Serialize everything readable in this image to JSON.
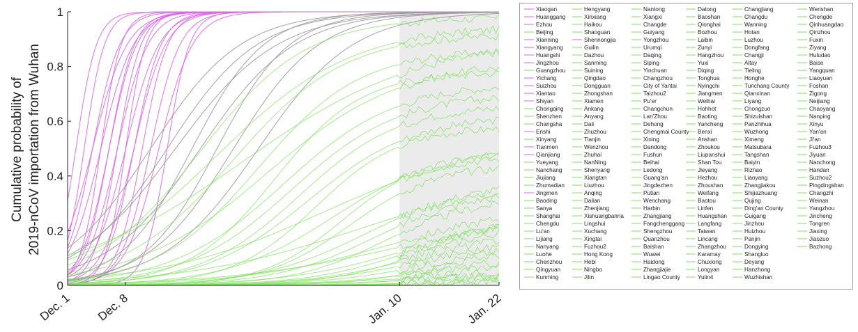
{
  "chart_data": {
    "type": "line",
    "ylabel_line1": "Cumulative probability of",
    "ylabel_line2": "2019-nCoV importation from Wuhan",
    "xlabel": "",
    "ylim": [
      0,
      1
    ],
    "yticks": [
      "0",
      "0.2",
      "0.4",
      "0.6",
      "0.8",
      "1"
    ],
    "ytick_values": [
      0,
      0.2,
      0.4,
      0.6,
      0.8,
      1
    ],
    "xticks": [
      {
        "label": "Dec. 1",
        "date": "2019-12-01"
      },
      {
        "label": "Dec. 8",
        "date": "2019-12-08"
      },
      {
        "label": "Jan. 10",
        "date": "2020-01-10"
      },
      {
        "label": "Jan. 22",
        "date": "2020-01-22"
      }
    ],
    "xrange": [
      "2019-12-01",
      "2020-01-22"
    ],
    "shaded_region": [
      "2020-01-10",
      "2020-01-22"
    ],
    "grid": false,
    "legend_position": "right",
    "colors": {
      "hubei": "#d966e6",
      "transition": "#9a9a9a",
      "other": "#7ee35c",
      "shade": "#ebebeb"
    },
    "series_groups": [
      {
        "group": "hubei",
        "color": "#d966e6",
        "t50_dates": [
          "2019-12-02",
          "2019-12-03",
          "2019-12-04",
          "2019-12-04",
          "2019-12-05",
          "2019-12-05",
          "2019-12-06",
          "2019-12-06",
          "2019-12-07",
          "2019-12-07",
          "2019-12-08",
          "2019-12-08",
          "2019-12-09",
          "2019-12-09",
          "2019-12-10",
          "2019-12-11",
          "2019-12-12",
          "2019-12-13"
        ]
      },
      {
        "group": "transition",
        "color": "#9a9a9a",
        "t50_dates": [
          "2019-12-11",
          "2019-12-13",
          "2019-12-14",
          "2019-12-16",
          "2019-12-17",
          "2019-12-19",
          "2019-12-21",
          "2019-12-24"
        ]
      },
      {
        "group": "other",
        "color": "#7ee35c",
        "t50_dates": [
          "2019-12-17",
          "2019-12-19",
          "2019-12-21",
          "2019-12-22",
          "2019-12-24",
          "2019-12-25",
          "2019-12-26",
          "2019-12-27",
          "2019-12-28",
          "2019-12-29",
          "2019-12-30",
          "2019-12-31",
          "2020-01-01",
          "2020-01-02",
          "2020-01-03",
          "2020-01-04",
          "2020-01-05",
          "2020-01-06",
          "2020-01-07",
          "2020-01-08",
          "2020-01-09",
          "2020-01-10",
          "2020-01-11",
          "2020-01-11",
          "2020-01-12",
          "2020-01-12",
          "2020-01-13",
          "2020-01-14",
          "2020-01-15",
          "2020-01-16",
          "2020-01-17",
          "2020-01-18",
          "2020-01-19",
          "2020-01-20",
          "2020-01-21",
          "2020-01-22"
        ],
        "final_values": [
          0.98,
          0.95,
          0.92,
          0.9,
          0.86,
          0.82,
          0.78,
          0.74,
          0.7,
          0.66,
          0.62,
          0.58,
          0.54,
          0.5,
          0.47,
          0.44,
          0.41,
          0.38,
          0.35,
          0.32,
          0.3,
          0.28,
          0.26,
          0.24,
          0.22,
          0.2,
          0.18,
          0.16,
          0.14,
          0.12,
          0.1,
          0.08,
          0.06,
          0.05,
          0.04,
          0.03
        ]
      }
    ],
    "legend_columns": [
      [
        "Xiaogan",
        "Huanggang",
        "Ezhou",
        "Beijing",
        "Xianning",
        "Xiangyang",
        "Huangshi",
        "Jingzhou",
        "Guangzhou",
        "Yichang",
        "Suizhou",
        "Xiantao",
        "Shiyan",
        "Chongqing",
        "Shenzhen",
        "Changsha",
        "Enshi",
        "Xinyang",
        "Tianmen",
        "Qianjiang",
        "Yueyang",
        "Nanchang",
        "Jiujiang",
        "Zhumadian",
        "Jingmen",
        "Baoding",
        "Sanya",
        "Shanghai",
        "Chengdu",
        "Lu'an",
        "Lijiang",
        "Nanyang",
        "Luohe",
        "Chenzhou",
        "Qingyuan",
        "Kunming"
      ],
      [
        "Hengyang",
        "Xinxiang",
        "Haikou",
        "Shaoguan",
        "Shennongjia",
        "Guilin",
        "Dazhou",
        "Sanming",
        "Suining",
        "Qingdao",
        "Dongguan",
        "Zhongshan",
        "Xiamen",
        "Ankang",
        "Anyang",
        "Dali",
        "Zhuzhou",
        "Tianjin",
        "Wenzhou",
        "Zhuhai",
        "NanNing",
        "Shenyang",
        "Xiangtan",
        "Liuzhou",
        "Anqing",
        "Dalian",
        "Zhenjiang",
        "Xishuangbanna",
        "Lingshui",
        "Xuchang",
        "Xingtai",
        "Fuzhou2",
        "Hong Kong",
        "Hebi",
        "Ningbo",
        "Jilin"
      ],
      [
        "Nantong",
        "Xiangxi",
        "Changde",
        "Guiyang",
        "Yongzhou",
        "Urumqi",
        "Daqing",
        "Siping",
        "Yinchuan",
        "Changzhou",
        "City of Yantai",
        "Taizhou2",
        "Pu'er",
        "Changchun",
        "Lan'Zhou",
        "Dehong",
        "Chengmai County",
        "Xining",
        "Dandong",
        "Fushun",
        "Beihai",
        "Ledong",
        "Guang'an",
        "Jingdezhen",
        "Putian",
        "Wenchang",
        "Harbin",
        "Zhangjiang",
        "Fangchenggang",
        "Shengzhou",
        "Quanzhou",
        "Baishan",
        "Wuwei",
        "Haidong",
        "Zhangjiajie",
        "Lingao County"
      ],
      [
        "Datong",
        "Baoshan",
        "Qionghai",
        "Bozhou",
        "Laibin",
        "Zunyi",
        "Hangzhou",
        "Yuxi",
        "Diqing",
        "Tonghua",
        "Nyingchi",
        "Jiangmen",
        "Weihai",
        "Hohhot",
        "Baoting",
        "Yancheng",
        "Benxi",
        "Anshan",
        "Zhoukou",
        "Liupanshui",
        "Shan Tou",
        "Jieyang",
        "Hezhou",
        "Zhoushan",
        "Weifang",
        "Baotou",
        "Linfen",
        "Huangshan",
        "Langfang",
        "Taiwan",
        "Lincang",
        "Zhangzhou",
        "Karamay",
        "Chuxiong",
        "Longyan",
        "Yulin4"
      ],
      [
        "Changjiang",
        "Changdu",
        "Wanning",
        "Hotan",
        "Luzhou",
        "Dongfang",
        "Changji",
        "Altay",
        "Tieling",
        "Honghe",
        "Tunchang County",
        "Qianxinan",
        "Liyang",
        "Chongzuo",
        "Shizuishan",
        "Panzhihua",
        "Wuzhong",
        "Ximeng",
        "Matsubara",
        "Tangshan",
        "Baiyin",
        "Rizhao",
        "Liaoyang",
        "Zhangjiakou",
        "Shijiazhuang",
        "Qujing",
        "Ding'an County",
        "Guigang",
        "Jinzhou",
        "Huizhou",
        "Panjin",
        "Dongying",
        "Shangluo",
        "Deyang",
        "Hanzhong",
        "Wuzhishan"
      ],
      [
        "Wenshan",
        "Chengde",
        "Qinhuangdao",
        "Qinzhou",
        "Fuxin",
        "Ziyang",
        "Huludao",
        "Baise",
        "Yangquan",
        "Liaoyuan",
        "Foshan",
        "Zigong",
        "Neijiang",
        "Chaoyang",
        "Nanping",
        "Xinyu",
        "Yan'an",
        "Ji'an",
        "Fuzhou3",
        "Jiyuan",
        "Nanchong",
        "Handan",
        "Suzhou2",
        "Pingdingshan",
        "Changzhi",
        "Weinan",
        "Yangzhou",
        "Jincheng",
        "Tongren",
        "Jiaxing",
        "Jiaozuo",
        "Bazhong"
      ]
    ]
  }
}
